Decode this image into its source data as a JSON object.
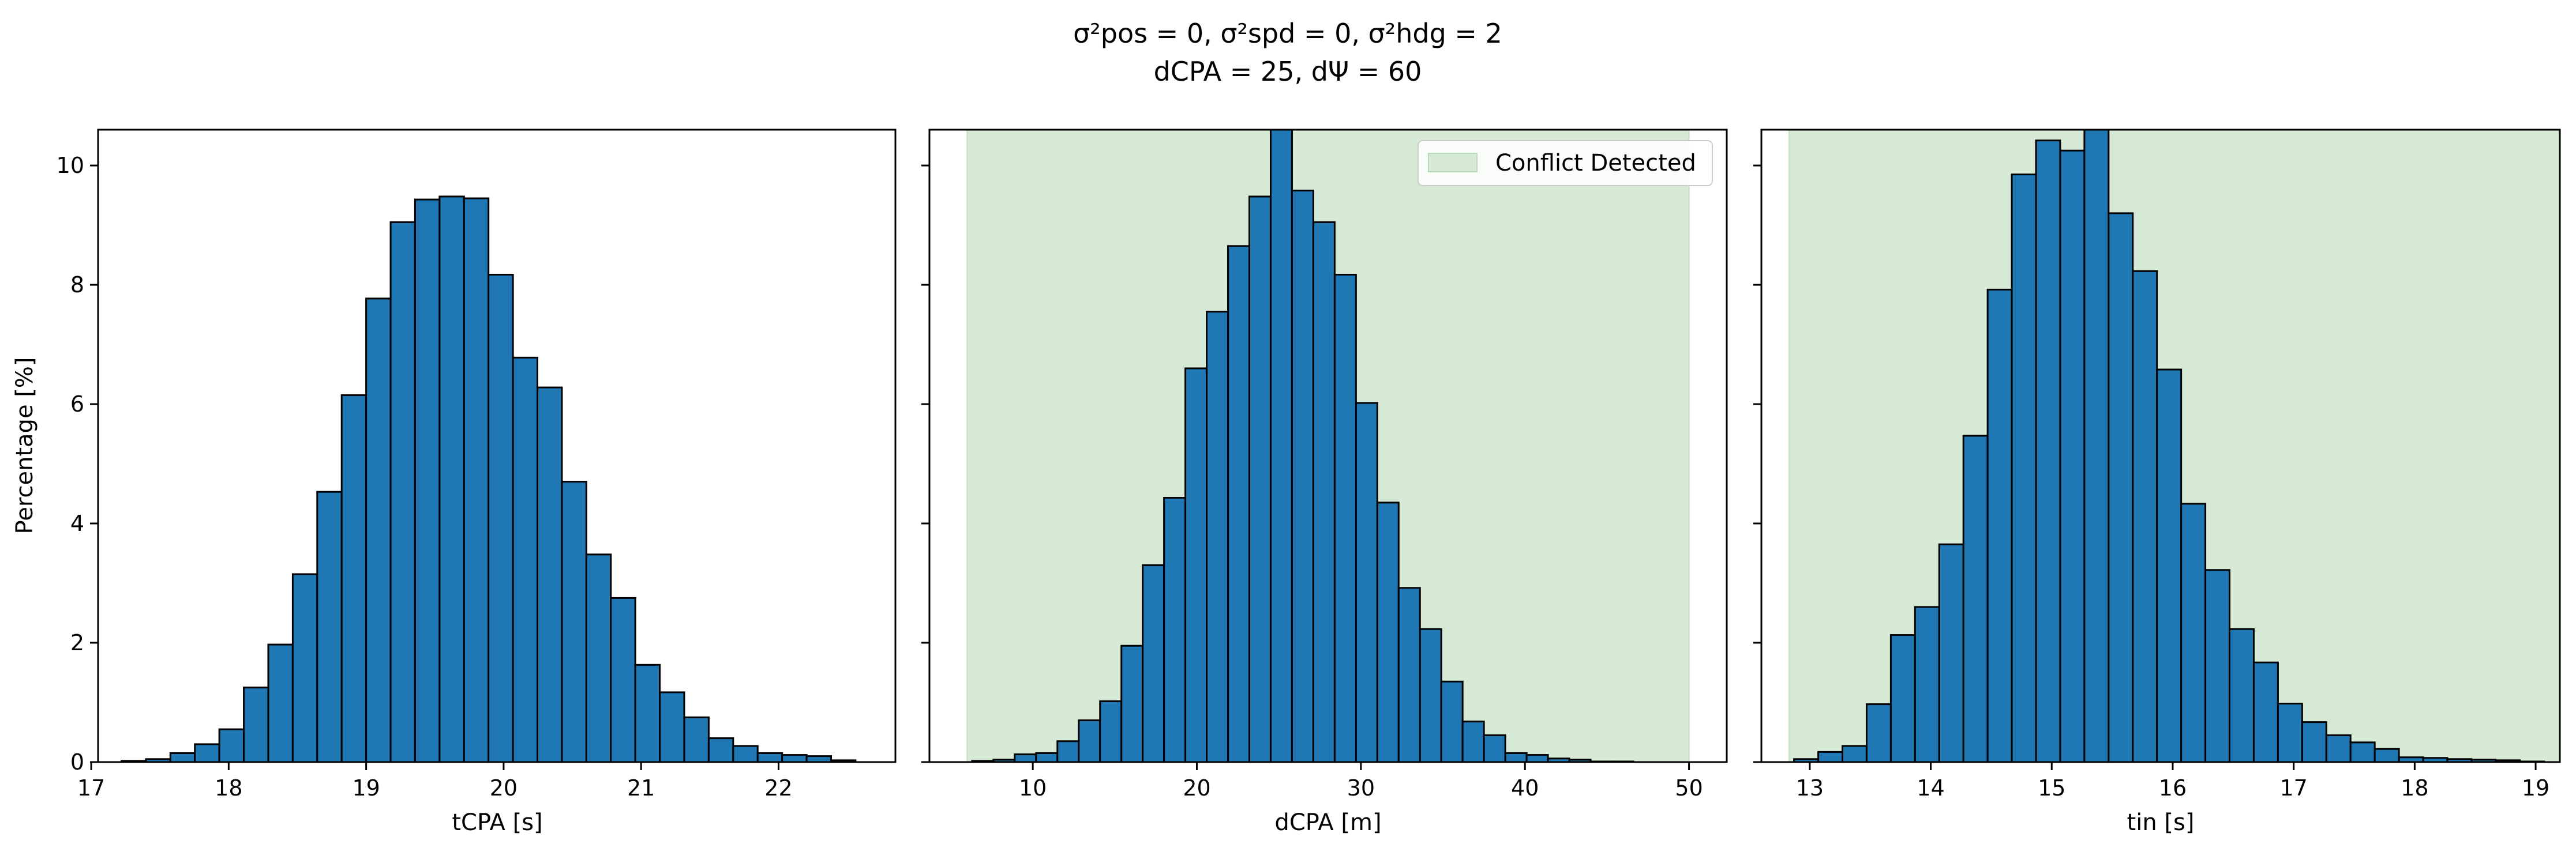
{
  "figure": {
    "title_line1": "σ²pos = 0, σ²spd = 0, σ²hdg = 2",
    "title_line2": "dCPA = 25, dΨ = 60"
  },
  "colors": {
    "bar_fill": "#1f77b4",
    "bar_edge": "#000000",
    "conflict_fill": "#d6ead6"
  },
  "chart_data": [
    {
      "type": "bar",
      "histogram": true,
      "xlabel": "tCPA [s]",
      "ylabel": "Percentage [%]",
      "xlim": [
        17.05,
        22.85
      ],
      "ylim": [
        0,
        10.6
      ],
      "xticks": [
        17,
        18,
        19,
        20,
        21,
        22
      ],
      "yticks": [
        0,
        2,
        4,
        6,
        8,
        10
      ],
      "bin_start": 17.22,
      "bin_width": 0.178,
      "values": [
        0.02,
        0.05,
        0.15,
        0.3,
        0.55,
        1.25,
        1.97,
        3.15,
        4.53,
        6.15,
        7.77,
        9.05,
        9.43,
        9.48,
        9.45,
        8.17,
        6.78,
        6.28,
        4.7,
        3.48,
        2.75,
        1.63,
        1.17,
        0.75,
        0.4,
        0.27,
        0.15,
        0.12,
        0.1,
        0.03
      ],
      "shaded_region": null
    },
    {
      "type": "bar",
      "histogram": true,
      "xlabel": "dCPA [m]",
      "ylabel": "",
      "xlim": [
        3.7,
        52.3
      ],
      "ylim": [
        0,
        10.6
      ],
      "xticks": [
        10,
        20,
        30,
        40,
        50
      ],
      "yticks": [
        0,
        2,
        4,
        6,
        8,
        10
      ],
      "bin_start": 6.3,
      "bin_width": 1.3,
      "values": [
        0.02,
        0.04,
        0.13,
        0.15,
        0.35,
        0.7,
        1.02,
        1.95,
        3.3,
        4.43,
        6.6,
        7.55,
        8.65,
        9.48,
        10.6,
        9.58,
        9.05,
        8.17,
        6.02,
        4.35,
        2.92,
        2.23,
        1.35,
        0.68,
        0.45,
        0.15,
        0.12,
        0.06,
        0.04,
        0.01,
        0.01
      ],
      "shaded_region": {
        "x_start": 6.0,
        "x_end": 50.0,
        "label": "Conflict Detected"
      },
      "legend": {
        "entries": [
          "Conflict Detected"
        ],
        "position": "top-right"
      }
    },
    {
      "type": "bar",
      "histogram": true,
      "xlabel": "tin [s]",
      "ylabel": "",
      "xlim": [
        12.6,
        19.2
      ],
      "ylim": [
        0,
        10.6
      ],
      "xticks": [
        13,
        14,
        15,
        16,
        17,
        18,
        19
      ],
      "yticks": [
        0,
        2,
        4,
        6,
        8,
        10
      ],
      "bin_start": 12.87,
      "bin_width": 0.2,
      "values": [
        0.05,
        0.17,
        0.27,
        0.97,
        2.13,
        2.6,
        3.65,
        5.47,
        7.92,
        9.85,
        10.42,
        10.25,
        10.6,
        9.2,
        8.23,
        6.58,
        4.33,
        3.22,
        2.23,
        1.67,
        0.98,
        0.67,
        0.45,
        0.33,
        0.22,
        0.08,
        0.07,
        0.05,
        0.04,
        0.03,
        0.01
      ],
      "shaded_region": {
        "x_start": 12.83,
        "x_end": 19.2,
        "label": ""
      }
    }
  ]
}
